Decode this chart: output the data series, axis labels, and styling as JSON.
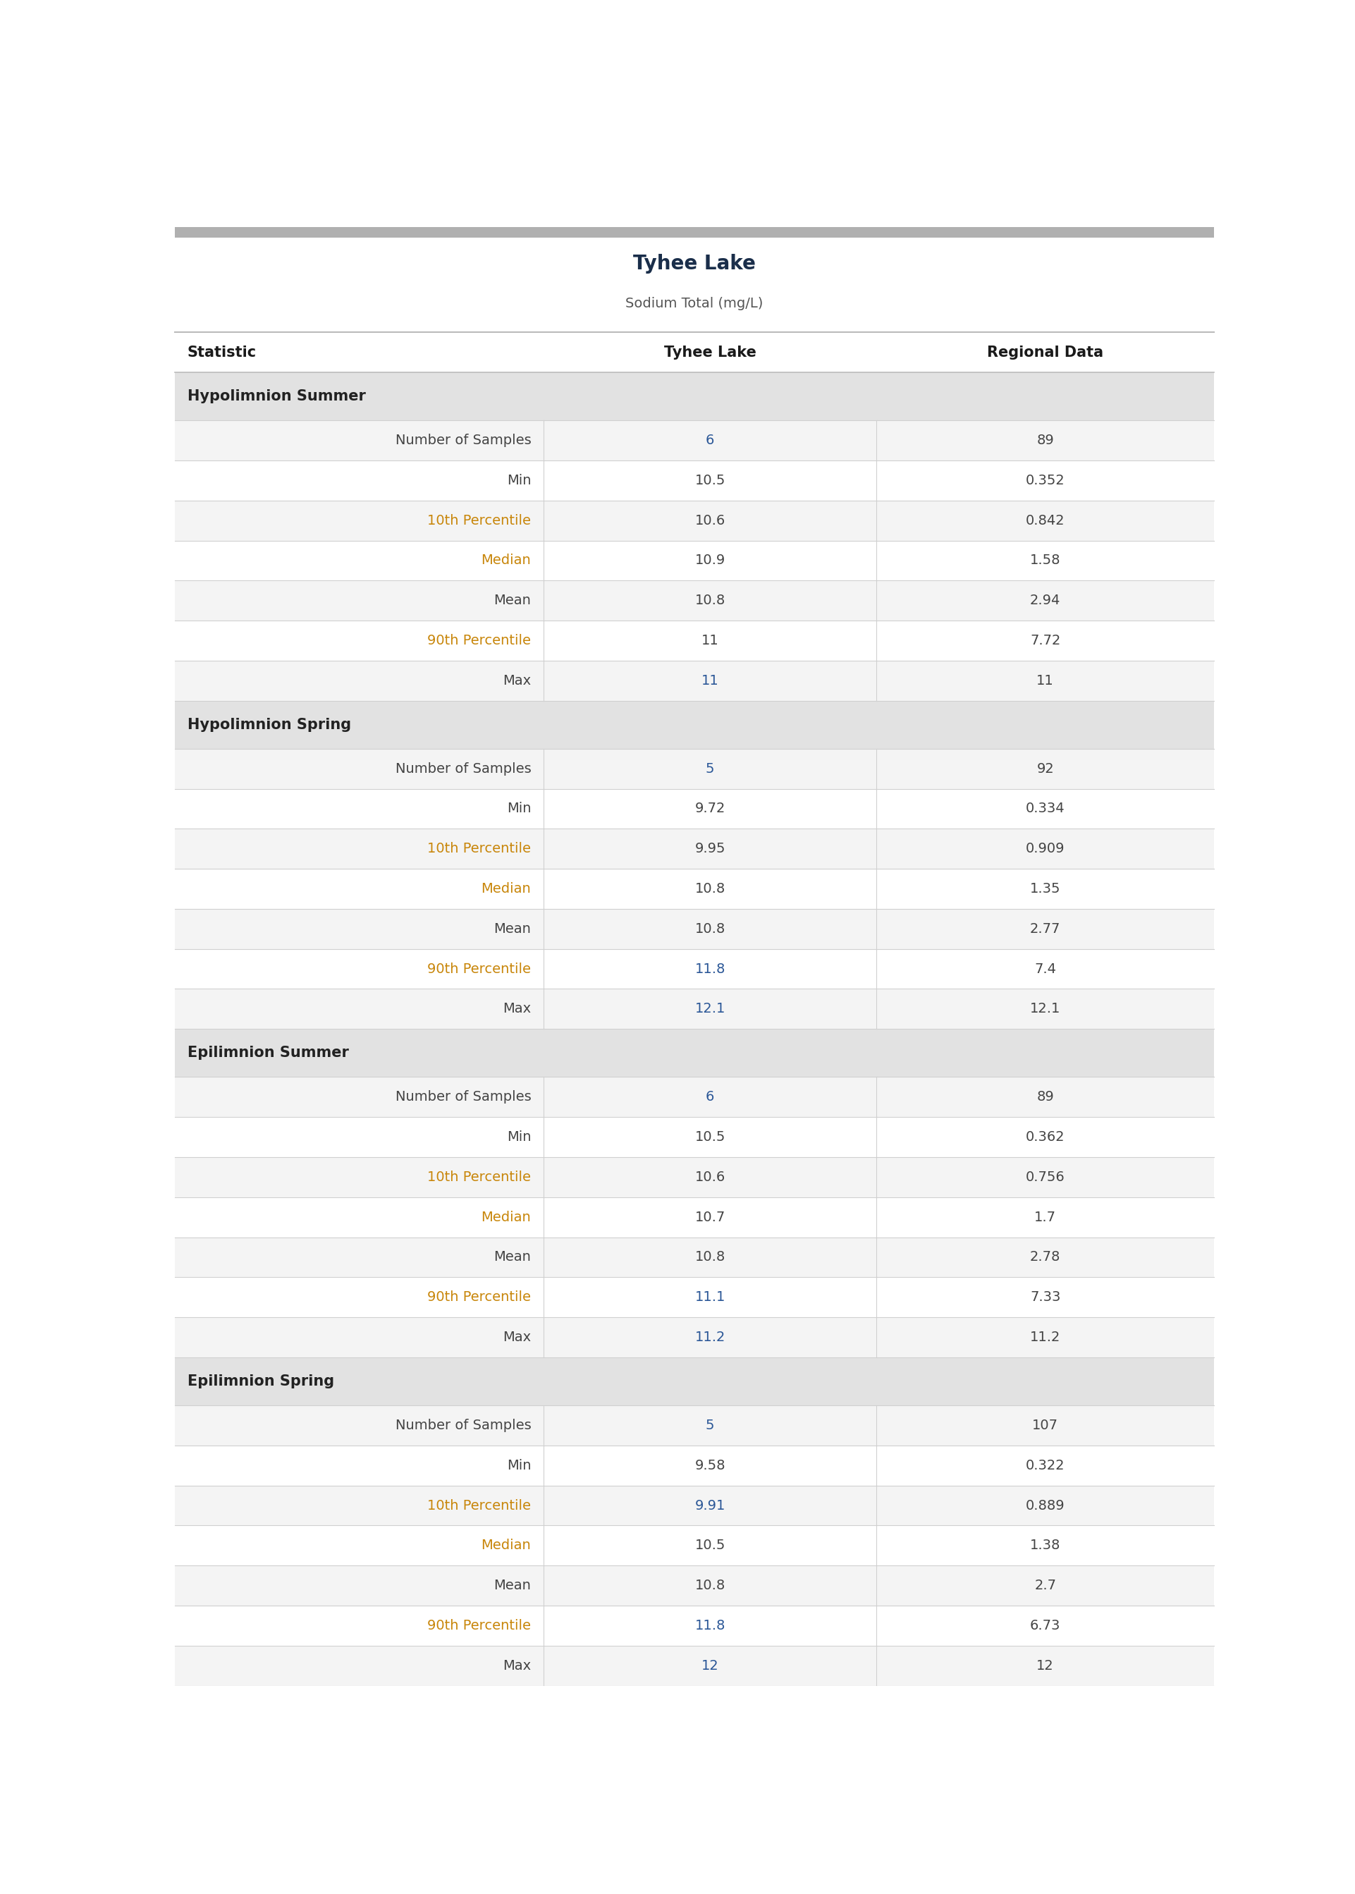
{
  "title": "Tyhee Lake",
  "subtitle": "Sodium Total (mg/L)",
  "col_headers": [
    "Statistic",
    "Tyhee Lake",
    "Regional Data"
  ],
  "sections": [
    {
      "section_label": "Hypolimnion Summer",
      "rows": [
        [
          "Number of Samples",
          "6",
          "89",
          "gray",
          "blue",
          "gray"
        ],
        [
          "Min",
          "10.5",
          "0.352",
          "gray",
          "gray",
          "gray"
        ],
        [
          "10th Percentile",
          "10.6",
          "0.842",
          "orange",
          "gray",
          "gray"
        ],
        [
          "Median",
          "10.9",
          "1.58",
          "orange",
          "gray",
          "gray"
        ],
        [
          "Mean",
          "10.8",
          "2.94",
          "gray",
          "gray",
          "gray"
        ],
        [
          "90th Percentile",
          "11",
          "7.72",
          "orange",
          "gray",
          "gray"
        ],
        [
          "Max",
          "11",
          "11",
          "gray",
          "blue",
          "gray"
        ]
      ]
    },
    {
      "section_label": "Hypolimnion Spring",
      "rows": [
        [
          "Number of Samples",
          "5",
          "92",
          "gray",
          "blue",
          "gray"
        ],
        [
          "Min",
          "9.72",
          "0.334",
          "gray",
          "gray",
          "gray"
        ],
        [
          "10th Percentile",
          "9.95",
          "0.909",
          "orange",
          "gray",
          "gray"
        ],
        [
          "Median",
          "10.8",
          "1.35",
          "orange",
          "gray",
          "gray"
        ],
        [
          "Mean",
          "10.8",
          "2.77",
          "gray",
          "gray",
          "gray"
        ],
        [
          "90th Percentile",
          "11.8",
          "7.4",
          "orange",
          "blue",
          "gray"
        ],
        [
          "Max",
          "12.1",
          "12.1",
          "gray",
          "blue",
          "gray"
        ]
      ]
    },
    {
      "section_label": "Epilimnion Summer",
      "rows": [
        [
          "Number of Samples",
          "6",
          "89",
          "gray",
          "blue",
          "gray"
        ],
        [
          "Min",
          "10.5",
          "0.362",
          "gray",
          "gray",
          "gray"
        ],
        [
          "10th Percentile",
          "10.6",
          "0.756",
          "orange",
          "gray",
          "gray"
        ],
        [
          "Median",
          "10.7",
          "1.7",
          "orange",
          "gray",
          "gray"
        ],
        [
          "Mean",
          "10.8",
          "2.78",
          "gray",
          "gray",
          "gray"
        ],
        [
          "90th Percentile",
          "11.1",
          "7.33",
          "orange",
          "blue",
          "gray"
        ],
        [
          "Max",
          "11.2",
          "11.2",
          "gray",
          "blue",
          "gray"
        ]
      ]
    },
    {
      "section_label": "Epilimnion Spring",
      "rows": [
        [
          "Number of Samples",
          "5",
          "107",
          "gray",
          "blue",
          "gray"
        ],
        [
          "Min",
          "9.58",
          "0.322",
          "gray",
          "gray",
          "gray"
        ],
        [
          "10th Percentile",
          "9.91",
          "0.889",
          "orange",
          "blue",
          "gray"
        ],
        [
          "Median",
          "10.5",
          "1.38",
          "orange",
          "gray",
          "gray"
        ],
        [
          "Mean",
          "10.8",
          "2.7",
          "gray",
          "gray",
          "gray"
        ],
        [
          "90th Percentile",
          "11.8",
          "6.73",
          "orange",
          "blue",
          "gray"
        ],
        [
          "Max",
          "12",
          "12",
          "gray",
          "blue",
          "gray"
        ]
      ]
    }
  ],
  "title_color": "#1a2e4a",
  "subtitle_color": "#555555",
  "header_text_color": "#1a1a1a",
  "section_bg_color": "#e2e2e2",
  "section_text_color": "#222222",
  "row_bg_odd": "#f4f4f4",
  "row_bg_even": "#ffffff",
  "color_orange": "#c8860a",
  "color_blue": "#2b5797",
  "color_gray": "#444444",
  "border_color": "#d0d0d0",
  "top_bar_color": "#b0b0b0",
  "header_line_color": "#bbbbbb",
  "col_splits": [
    0.355,
    0.675
  ],
  "title_fontsize": 20,
  "subtitle_fontsize": 14,
  "header_fontsize": 15,
  "section_fontsize": 15,
  "cell_fontsize": 14
}
